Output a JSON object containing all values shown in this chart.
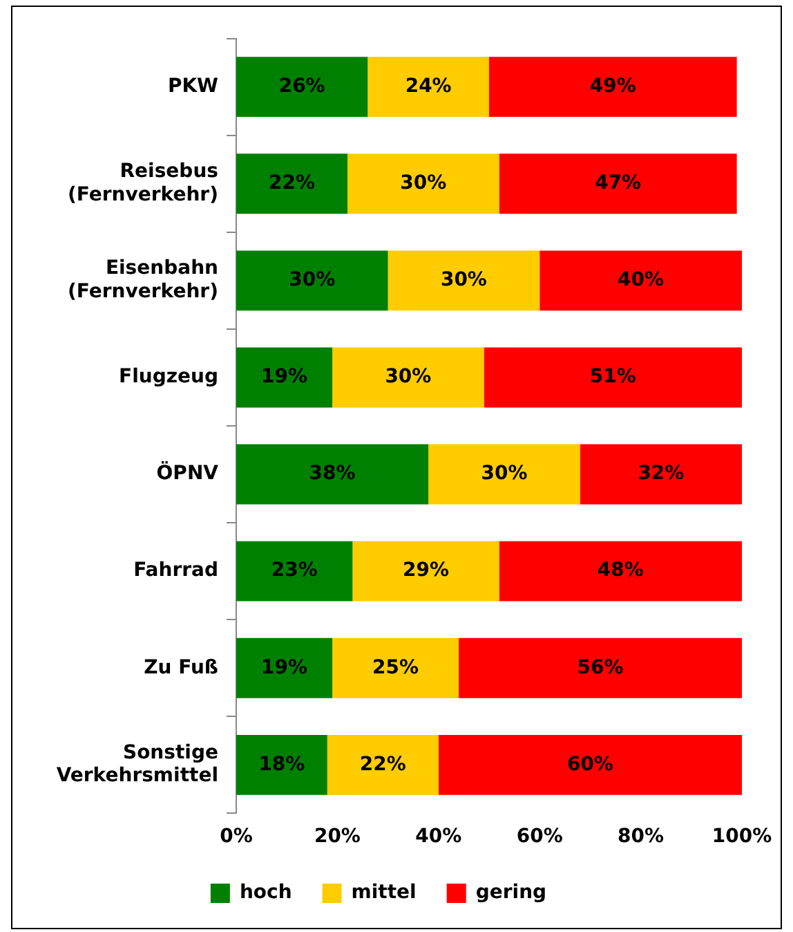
{
  "chart_data": {
    "type": "bar",
    "orientation": "horizontal",
    "stacked": true,
    "categories": [
      "PKW",
      "Reisebus\n(Fernverkehr)",
      "Eisenbahn\n(Fernverkehr)",
      "Flugzeug",
      "ÖPNV",
      "Fahrrad",
      "Zu Fuß",
      "Sonstige\nVerkehrsmittel"
    ],
    "series": [
      {
        "name": "hoch",
        "color": "#008000",
        "values": [
          26,
          22,
          30,
          19,
          38,
          23,
          19,
          18
        ],
        "value_labels": [
          "26%",
          "22%",
          "30%",
          "19%",
          "38%",
          "23%",
          "19%",
          "18%"
        ]
      },
      {
        "name": "mittel",
        "color": "#ffcc00",
        "values": [
          24,
          30,
          30,
          30,
          30,
          29,
          25,
          22
        ],
        "value_labels": [
          "24%",
          "30%",
          "30%",
          "30%",
          "30%",
          "29%",
          "25%",
          "22%"
        ]
      },
      {
        "name": "gering",
        "color": "#ff0000",
        "values": [
          49,
          47,
          40,
          51,
          32,
          48,
          56,
          60
        ],
        "value_labels": [
          "49%",
          "47%",
          "40%",
          "51%",
          "32%",
          "48%",
          "56%",
          "60%"
        ]
      }
    ],
    "xlim": [
      0,
      100
    ],
    "xticks": [
      {
        "value": 0,
        "label": "0%"
      },
      {
        "value": 20,
        "label": "20%"
      },
      {
        "value": 40,
        "label": "40%"
      },
      {
        "value": 60,
        "label": "60%"
      },
      {
        "value": 80,
        "label": "80%"
      },
      {
        "value": 100,
        "label": "100%"
      }
    ],
    "grid": false,
    "legend": "bottom"
  }
}
